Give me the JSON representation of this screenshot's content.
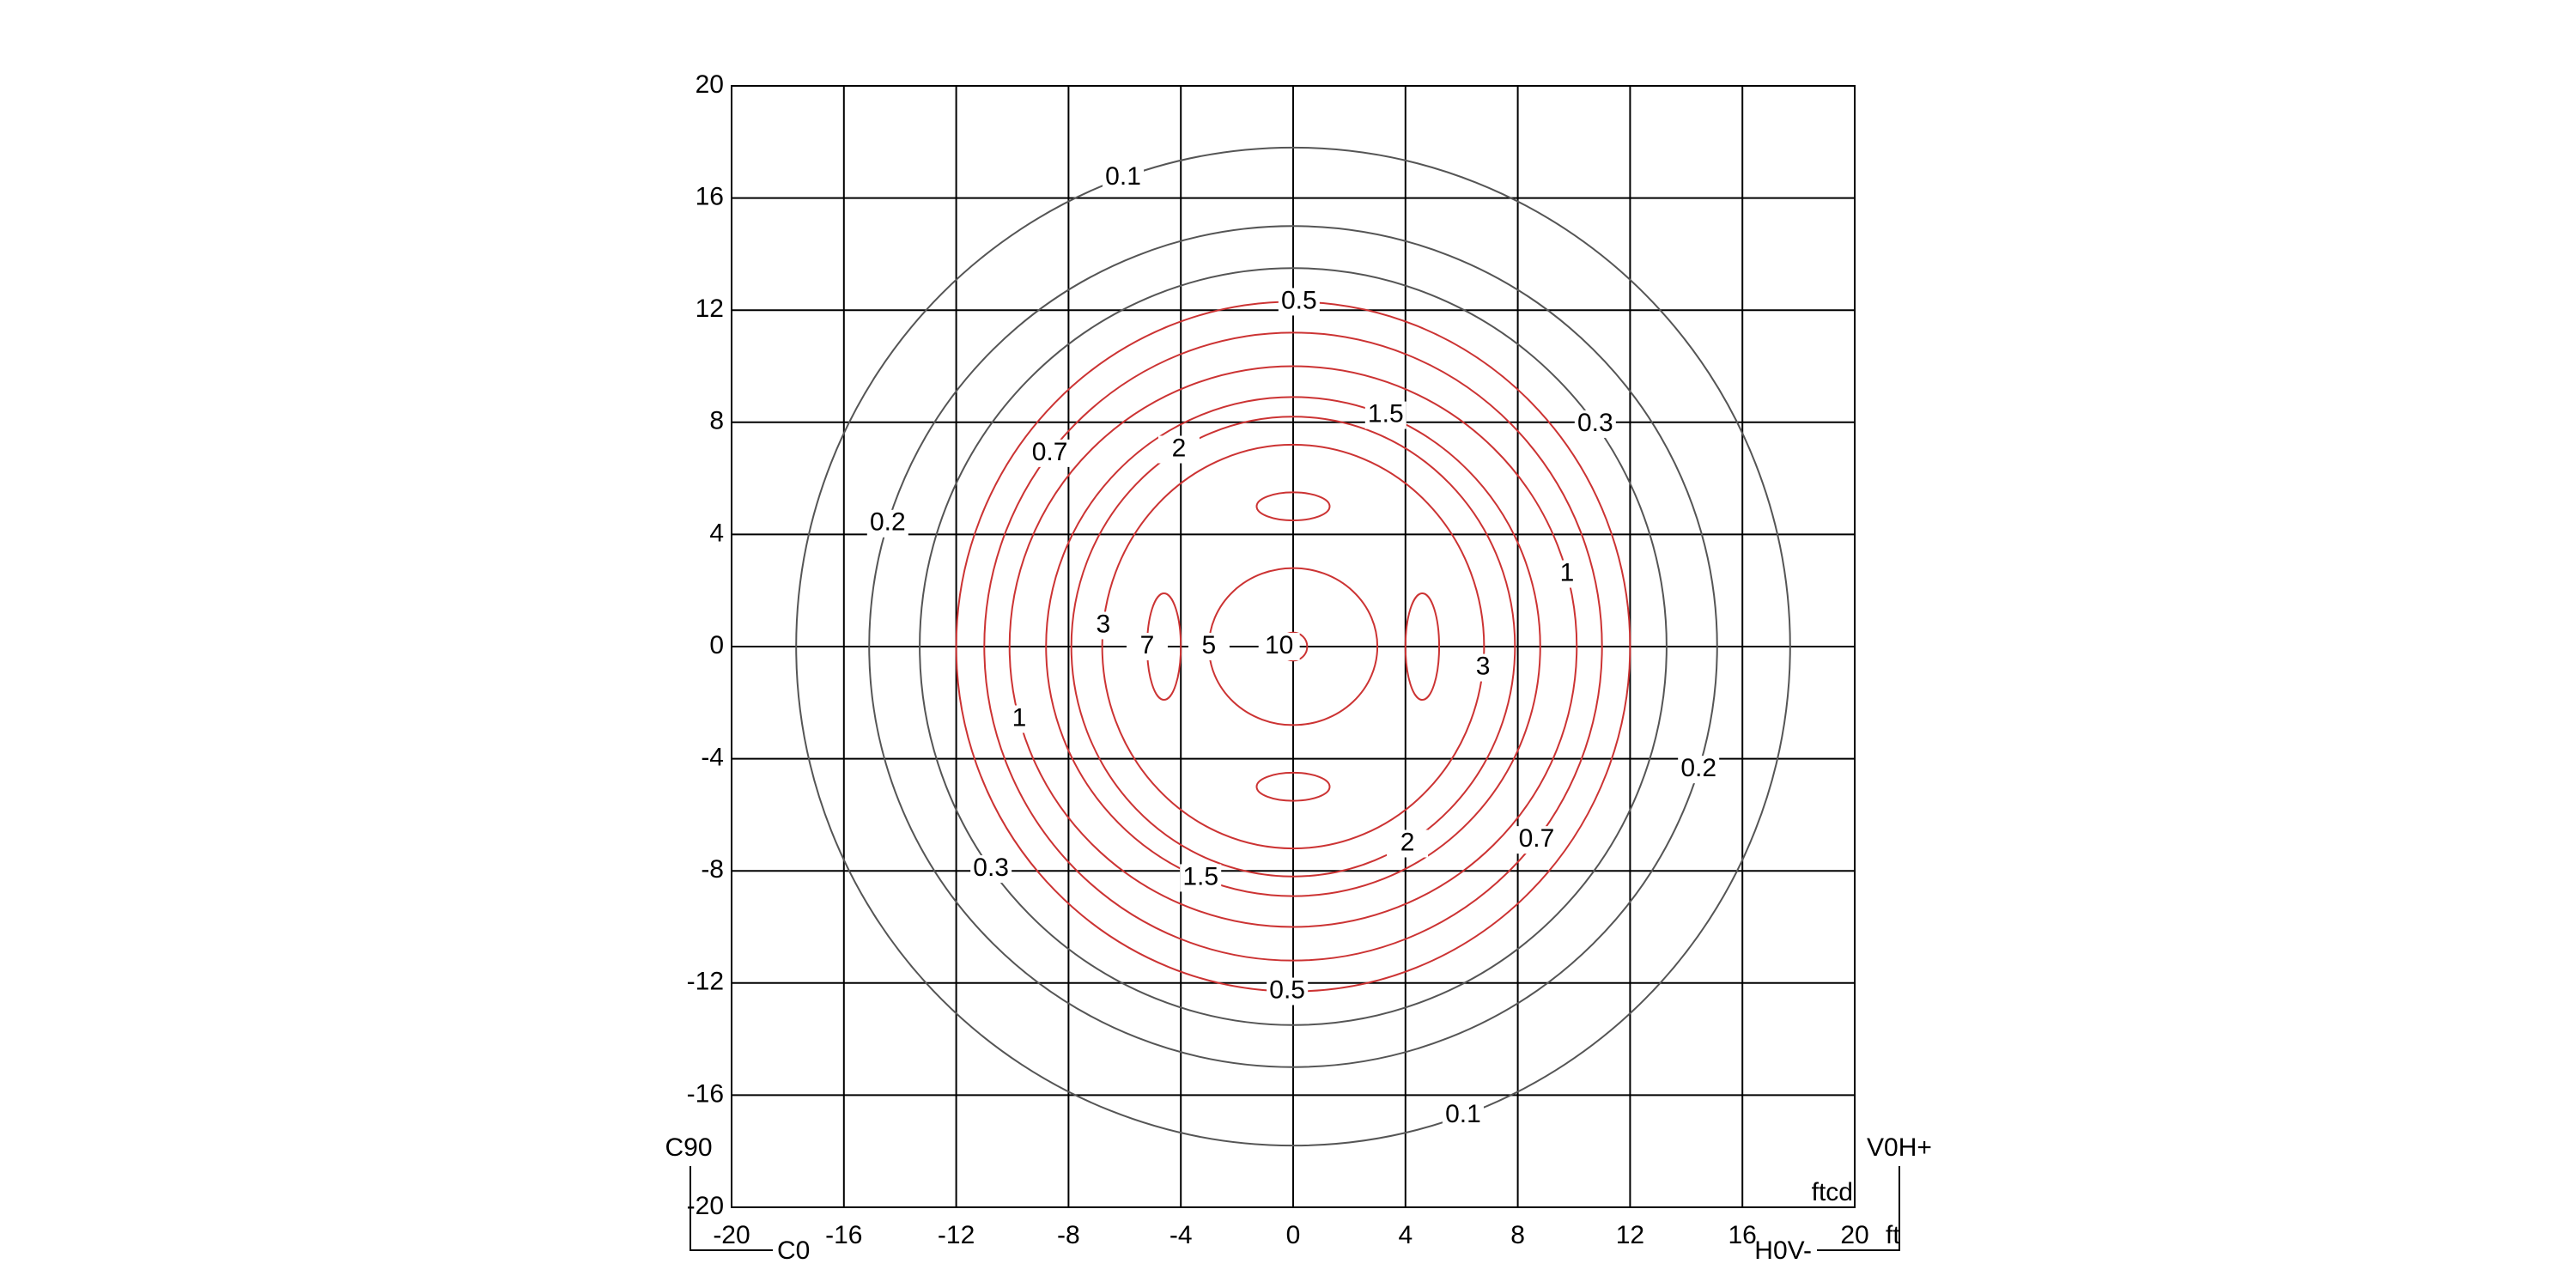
{
  "chart_data": {
    "type": "contour",
    "xlim": [
      -20,
      20
    ],
    "ylim": [
      -20,
      20
    ],
    "xticks": [
      -20,
      -16,
      -12,
      -8,
      -4,
      0,
      4,
      8,
      12,
      16,
      20
    ],
    "yticks": [
      -20,
      -16,
      -12,
      -8,
      -4,
      0,
      4,
      8,
      12,
      16,
      20
    ],
    "grid": true,
    "x_unit": "ft",
    "z_unit": "ftcd",
    "corner_labels": {
      "top_left": "C90",
      "bottom_left": "C0",
      "top_right": "V0H+",
      "bottom_right": "H0V-"
    },
    "contours": [
      {
        "level": 0.1,
        "color": "#555555",
        "rings": [
          {
            "cx": 0,
            "cy": 0,
            "rx": 17.7,
            "ry": 17.8
          }
        ]
      },
      {
        "level": 0.2,
        "color": "#555555",
        "rings": [
          {
            "cx": 0,
            "cy": 0,
            "rx": 15.1,
            "ry": 15
          }
        ]
      },
      {
        "level": 0.3,
        "color": "#555555",
        "rings": [
          {
            "cx": 0,
            "cy": 0,
            "rx": 13.3,
            "ry": 13.5
          }
        ]
      },
      {
        "level": 0.5,
        "color": "#cc3333",
        "rings": [
          {
            "cx": 0,
            "cy": 0,
            "rx": 12,
            "ry": 12.3
          }
        ]
      },
      {
        "level": 0.7,
        "color": "#cc3333",
        "rings": [
          {
            "cx": 0,
            "cy": 0,
            "rx": 11,
            "ry": 11.2
          }
        ]
      },
      {
        "level": 1,
        "color": "#cc3333",
        "rings": [
          {
            "cx": 0,
            "cy": 0,
            "rx": 10.1,
            "ry": 10
          }
        ]
      },
      {
        "level": 1.5,
        "color": "#cc3333",
        "rings": [
          {
            "cx": 0,
            "cy": 0,
            "rx": 8.8,
            "ry": 8.9
          }
        ]
      },
      {
        "level": 2,
        "color": "#cc3333",
        "rings": [
          {
            "cx": 0,
            "cy": 0,
            "rx": 7.9,
            "ry": 8.2
          }
        ]
      },
      {
        "level": 3,
        "color": "#cc3333",
        "rings": [
          {
            "cx": 0,
            "cy": 0,
            "rx": 6.8,
            "ry": 7.2
          }
        ]
      },
      {
        "level": 7,
        "color": "#cc3333",
        "rings": [
          {
            "cx": -4.6,
            "cy": 0,
            "rx": 0.6,
            "ry": 1.9
          },
          {
            "cx": 4.6,
            "cy": 0,
            "rx": 0.6,
            "ry": 1.9
          },
          {
            "cx": 0,
            "cy": 5,
            "rx": 1.3,
            "ry": 0.5
          },
          {
            "cx": 0,
            "cy": -5,
            "rx": 1.3,
            "ry": 0.5
          }
        ]
      },
      {
        "level": 5,
        "color": "#cc3333",
        "rings": [
          {
            "cx": 0,
            "cy": 0,
            "rx": 3,
            "ry": 2.8
          }
        ]
      },
      {
        "level": 10,
        "color": "#cc3333",
        "rings": [
          {
            "cx": 0,
            "cy": 0,
            "rx": 0.5,
            "ry": 0.5
          }
        ]
      }
    ]
  }
}
